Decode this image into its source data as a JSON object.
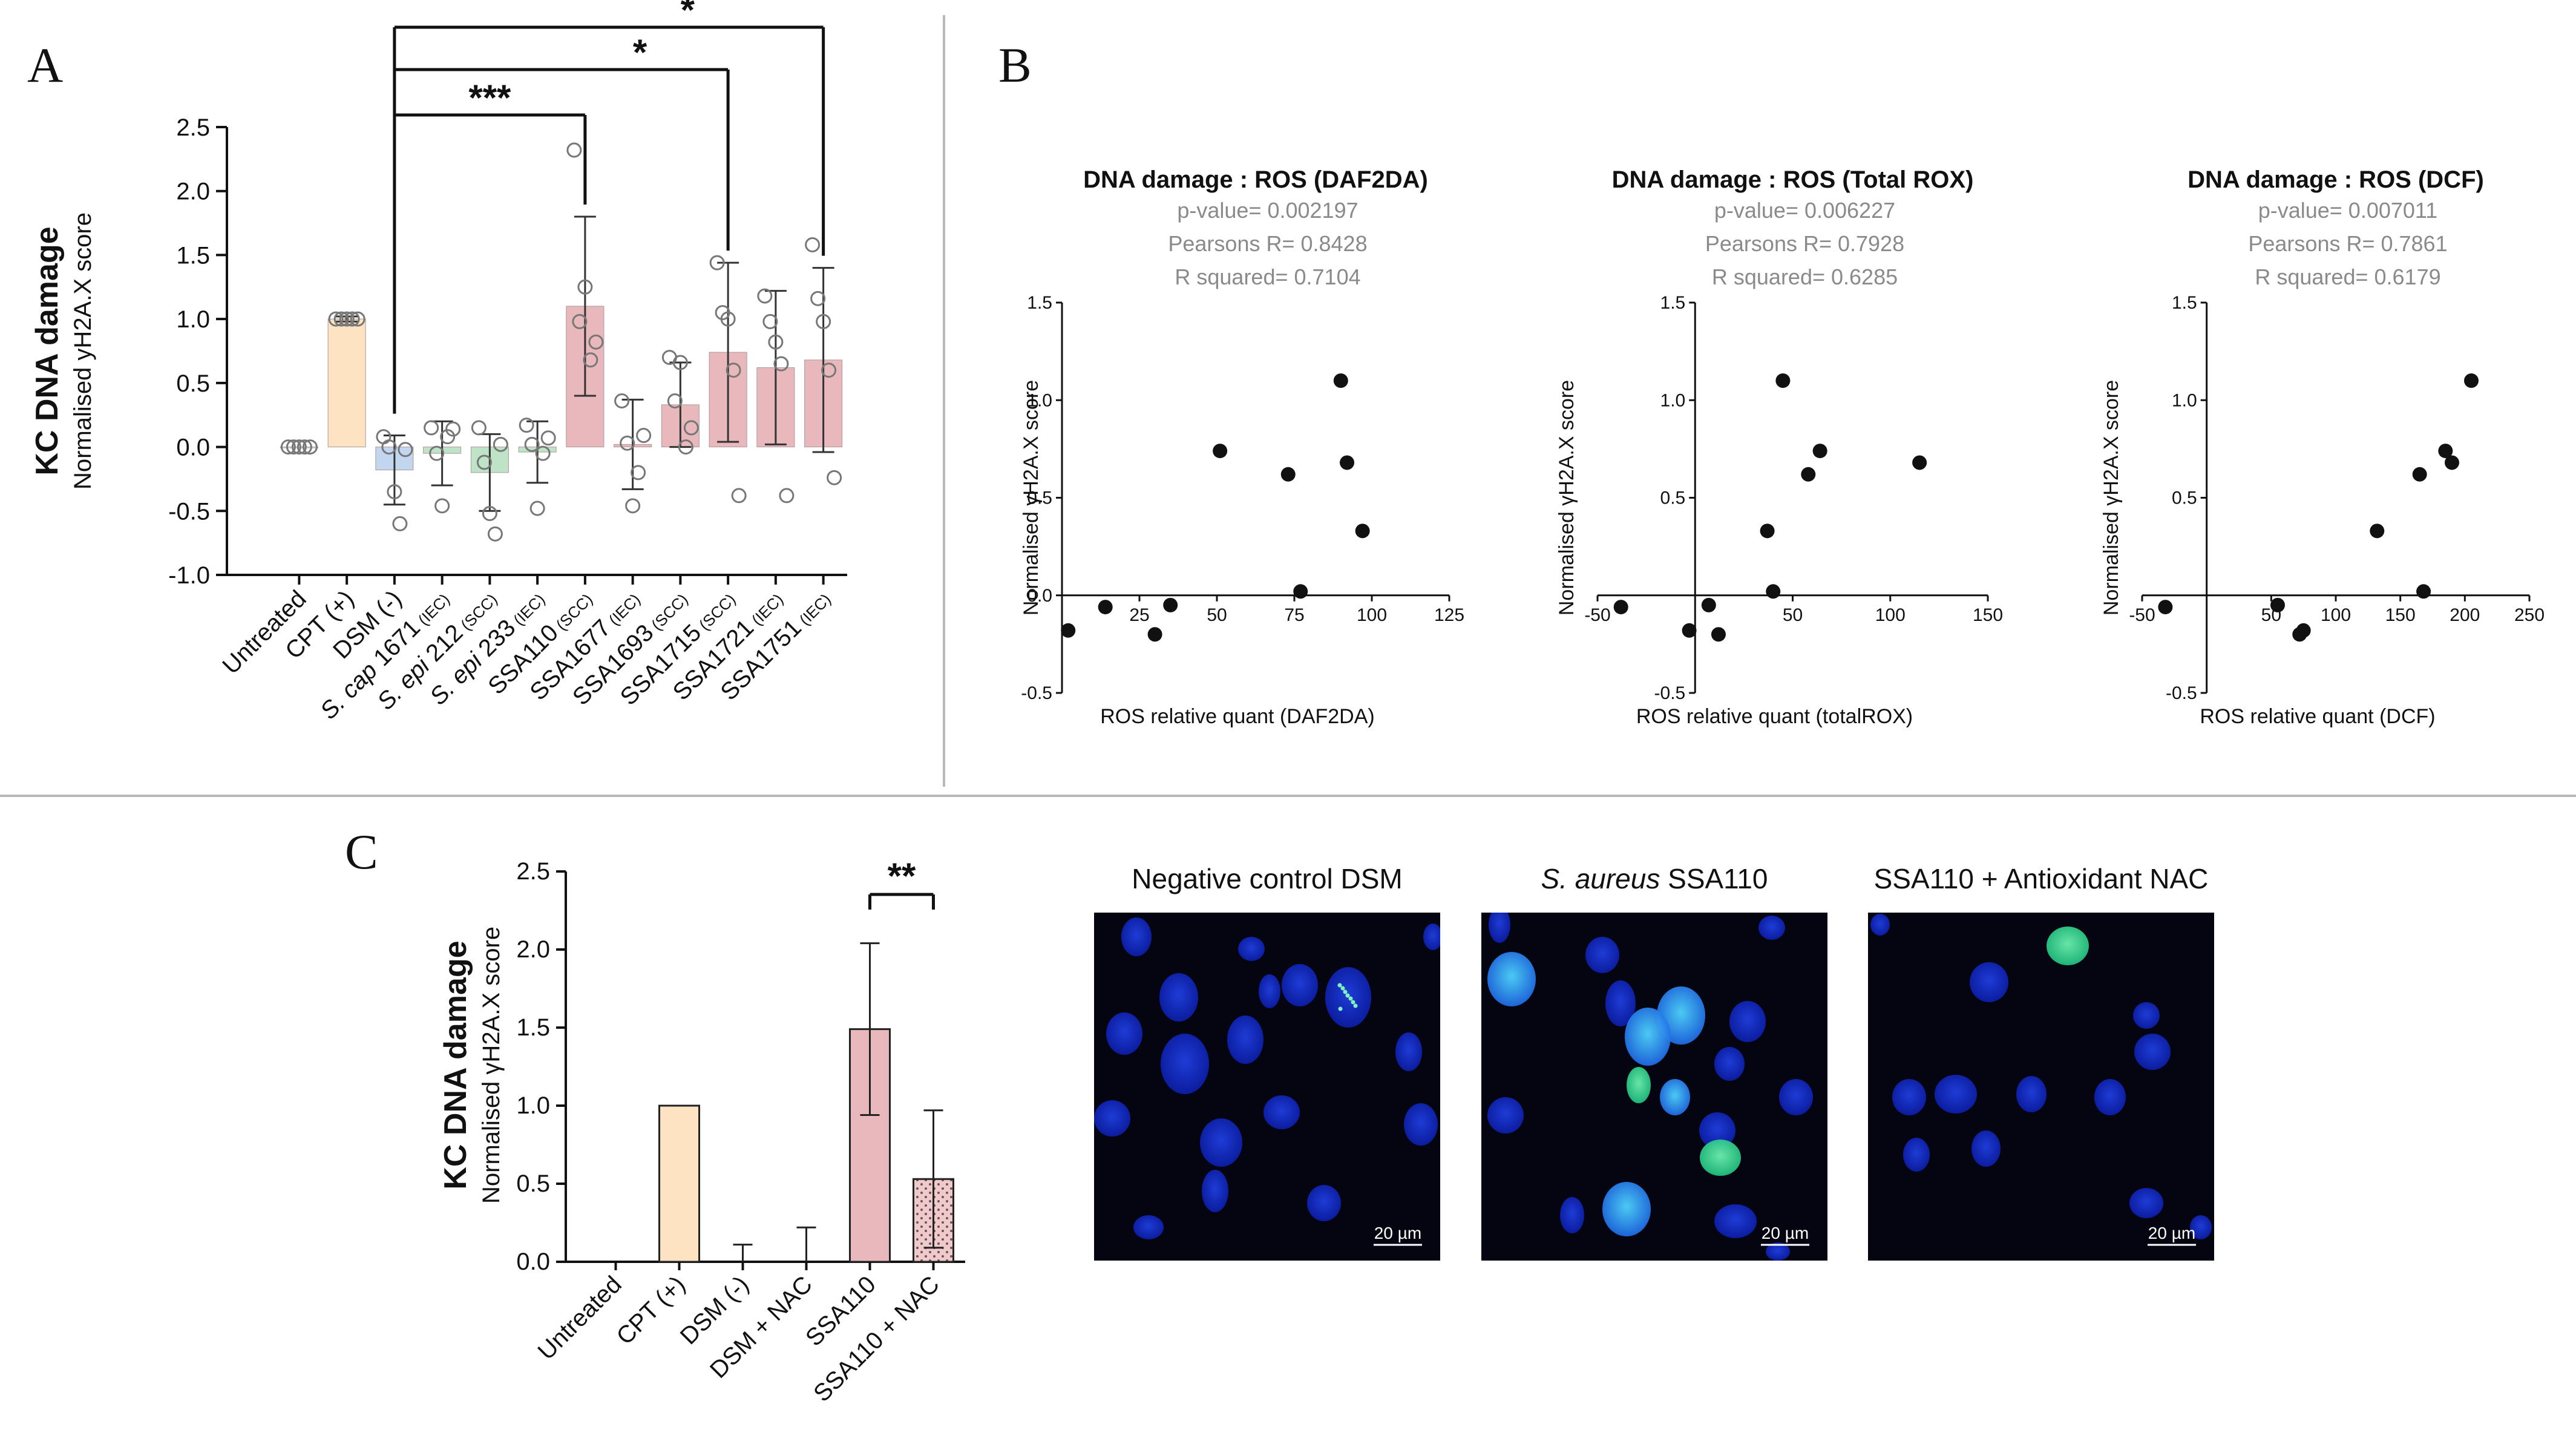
{
  "panels": {
    "a": "A",
    "b": "B",
    "c": "C"
  },
  "colors": {
    "untreated": "#ffffff",
    "cpt": "#fde3c2",
    "dsm": "#c3d6ef",
    "sepi": "#bfe3c6",
    "ssa": "#e9b8bc",
    "ssa_nac": "#f0c9cb",
    "marker": "#111111",
    "open_marker": "#777777"
  },
  "chart_data": [
    {
      "id": "A",
      "type": "bar",
      "ylabel_bold": "KC DNA damage",
      "ylabel": "Normalised yH2A.X score",
      "ylim": [
        -1.0,
        2.5
      ],
      "yticks": [
        "2.5",
        "2.0",
        "1.5",
        "1.0",
        "0.5",
        "0.0",
        "-0.5",
        "-1.0"
      ],
      "ytick_values": [
        2.5,
        2.0,
        1.5,
        1.0,
        0.5,
        0.0,
        -0.5,
        -1.0
      ],
      "categories": [
        {
          "pre": "",
          "it": "",
          "main": "Untreated",
          "suf": ""
        },
        {
          "pre": "",
          "it": "",
          "main": "CPT (+)",
          "suf": ""
        },
        {
          "pre": "",
          "it": "",
          "main": "DSM (-)",
          "suf": ""
        },
        {
          "pre": "",
          "it": "S. cap",
          "main": " 1671",
          "suf": "(IEC)"
        },
        {
          "pre": "",
          "it": "S. epi",
          "main": " 212",
          "suf": "(SCC)"
        },
        {
          "pre": "",
          "it": "S. epi",
          "main": " 233",
          "suf": "(IEC)"
        },
        {
          "pre": "",
          "it": "",
          "main": "SSA110",
          "suf": "(SCC)"
        },
        {
          "pre": "",
          "it": "",
          "main": "SSA1677",
          "suf": "(IEC)"
        },
        {
          "pre": "",
          "it": "",
          "main": "SSA1693",
          "suf": "(SCC)"
        },
        {
          "pre": "",
          "it": "",
          "main": "SSA1715",
          "suf": "(SCC)"
        },
        {
          "pre": "",
          "it": "",
          "main": "SSA1721",
          "suf": "(IEC)"
        },
        {
          "pre": "",
          "it": "",
          "main": "SSA1751",
          "suf": "(IEC)"
        }
      ],
      "values": [
        0.0,
        1.0,
        -0.18,
        -0.05,
        -0.2,
        -0.04,
        1.1,
        0.02,
        0.33,
        0.74,
        0.62,
        0.68
      ],
      "errors": [
        0.0,
        0.02,
        0.27,
        0.25,
        0.3,
        0.24,
        0.7,
        0.35,
        0.33,
        0.7,
        0.6,
        0.72
      ],
      "fill_keys": [
        "untreated",
        "cpt",
        "dsm",
        "sepi",
        "sepi",
        "sepi",
        "ssa",
        "ssa",
        "ssa",
        "ssa",
        "ssa",
        "ssa"
      ],
      "points": [
        [
          0,
          0,
          0,
          0,
          0
        ],
        [
          1,
          1,
          1,
          1,
          1
        ],
        [
          0.08,
          0.0,
          -0.35,
          -0.6,
          -0.02
        ],
        [
          0.15,
          -0.05,
          -0.46,
          0.08,
          0.14
        ],
        [
          0.15,
          -0.12,
          -0.52,
          -0.68,
          0.02
        ],
        [
          0.17,
          0.02,
          -0.48,
          -0.05,
          0.07
        ],
        [
          2.32,
          0.98,
          1.25,
          0.68,
          0.82
        ],
        [
          0.36,
          0.03,
          -0.46,
          -0.2,
          0.09
        ],
        [
          0.7,
          0.36,
          0.66,
          0.0,
          0.15
        ],
        [
          1.44,
          1.05,
          1.0,
          0.6,
          -0.38
        ],
        [
          1.18,
          0.98,
          0.82,
          0.65,
          -0.38
        ],
        [
          1.58,
          1.16,
          0.98,
          0.6,
          -0.24
        ]
      ],
      "significance": [
        {
          "label": "***",
          "from": 2,
          "to": 6
        },
        {
          "label": "*",
          "from": 2,
          "to": 9
        },
        {
          "label": "*",
          "from": 2,
          "to": 11
        }
      ]
    },
    {
      "id": "B1",
      "type": "scatter",
      "title": "DNA damage : ROS (DAF2DA)",
      "stats": [
        "p-value= 0.002197",
        "Pearsons R= 0.8428",
        "R squared= 0.7104"
      ],
      "xlabel": "ROS relative quant (DAF2DA)",
      "ylabel": "Normalised γH2A.X score",
      "xlim": [
        0,
        125
      ],
      "ylim": [
        -0.5,
        1.5
      ],
      "xticks": [
        "25",
        "50",
        "75",
        "100",
        "125"
      ],
      "xtick_values": [
        25,
        50,
        75,
        100,
        125
      ],
      "yticks": [
        "1.5",
        "1.0",
        "0.5",
        "0.0",
        "-0.5"
      ],
      "ytick_values": [
        1.5,
        1.0,
        0.5,
        0.0,
        -0.5
      ],
      "x": [
        2,
        14,
        30,
        35,
        51,
        73,
        77,
        90,
        92,
        97
      ],
      "y": [
        -0.18,
        -0.06,
        -0.2,
        -0.05,
        0.74,
        0.62,
        0.02,
        1.1,
        0.68,
        0.33
      ]
    },
    {
      "id": "B2",
      "type": "scatter",
      "title": "DNA damage : ROS (Total ROX)",
      "stats": [
        "p-value= 0.006227",
        "Pearsons R= 0.7928",
        "R squared= 0.6285"
      ],
      "xlabel": "ROS relative quant (totalROX)",
      "ylabel": "Normalised γH2A.X score",
      "xlim": [
        -50,
        150
      ],
      "ylim": [
        -0.5,
        1.5
      ],
      "xticks": [
        "-50",
        "50",
        "100",
        "150"
      ],
      "xtick_values": [
        -50,
        50,
        100,
        150
      ],
      "yticks": [
        "1.5",
        "1.0",
        "0.5",
        "-0.5"
      ],
      "ytick_values": [
        1.5,
        1.0,
        0.5,
        -0.5
      ],
      "x": [
        -38,
        -3,
        7,
        12,
        37,
        40,
        45,
        58,
        64,
        115
      ],
      "y": [
        -0.06,
        -0.18,
        -0.05,
        -0.2,
        0.33,
        0.02,
        1.1,
        0.62,
        0.74,
        0.68
      ]
    },
    {
      "id": "B3",
      "type": "scatter",
      "title": "DNA damage : ROS (DCF)",
      "stats": [
        "p-value= 0.007011",
        "Pearsons R= 0.7861",
        "R squared= 0.6179"
      ],
      "xlabel": "ROS relative quant (DCF)",
      "ylabel": "Normalised γH2A.X score",
      "xlim": [
        -50,
        250
      ],
      "ylim": [
        -0.5,
        1.5
      ],
      "xticks": [
        "-50",
        "50",
        "100",
        "150",
        "200",
        "250"
      ],
      "xtick_values": [
        -50,
        50,
        100,
        150,
        200,
        250
      ],
      "yticks": [
        "1.5",
        "1.0",
        "0.5",
        "-0.5"
      ],
      "ytick_values": [
        1.5,
        1.0,
        0.5,
        -0.5
      ],
      "x": [
        -32,
        55,
        72,
        75,
        132,
        165,
        168,
        185,
        190,
        205
      ],
      "y": [
        -0.06,
        -0.05,
        -0.2,
        -0.18,
        0.33,
        0.62,
        0.02,
        0.74,
        0.68,
        1.1
      ]
    },
    {
      "id": "C",
      "type": "bar",
      "ylabel_bold": "KC DNA damage",
      "ylabel": "Normalised γH2A.X score",
      "ylim": [
        0,
        2.5
      ],
      "yticks": [
        "2.5",
        "2.0",
        "1.5",
        "1.0",
        "0.5",
        "0.0"
      ],
      "ytick_values": [
        2.5,
        2.0,
        1.5,
        1.0,
        0.5,
        0.0
      ],
      "categories": [
        "Untreated",
        "CPT (+)",
        "DSM (-)",
        "DSM + NAC",
        "SSA110",
        "SSA110 + NAC"
      ],
      "values": [
        0.0,
        1.0,
        0.0,
        0.0,
        1.49,
        0.53
      ],
      "errors": [
        0.0,
        0.0,
        0.11,
        0.22,
        0.55,
        0.44
      ],
      "fill_keys": [
        "untreated",
        "cpt",
        "untreated",
        "untreated",
        "ssa",
        "ssa_nac"
      ],
      "significance": [
        {
          "label": "**",
          "from": 4,
          "to": 5
        }
      ]
    }
  ],
  "micrographs": [
    {
      "title_it": "",
      "title": "Negative control DSM",
      "scale": "20 µm"
    },
    {
      "title_it": "S. aureus",
      "title": " SSA110",
      "scale": "20 µm"
    },
    {
      "title_it": "",
      "title": "SSA110 + Antioxidant NAC",
      "scale": "20 µm"
    }
  ]
}
